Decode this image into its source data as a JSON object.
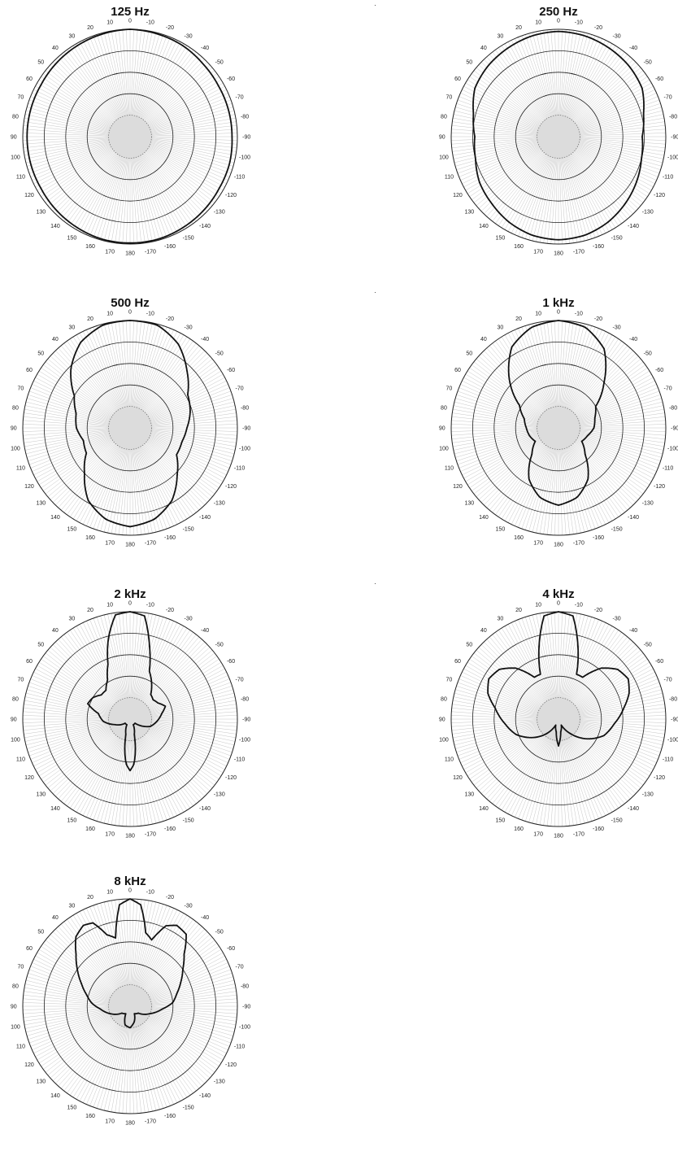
{
  "chart_data": [
    {
      "type": "polar",
      "title": "125 Hz",
      "angle_unit": "degrees",
      "rlim": [
        0,
        1
      ],
      "r_rings": [
        0.2,
        0.4,
        0.6,
        0.8,
        1.0
      ],
      "angle_labels": [
        "0",
        "10",
        "20",
        "30",
        "40",
        "50",
        "60",
        "70",
        "80",
        "90",
        "100",
        "110",
        "120",
        "130",
        "140",
        "150",
        "160",
        "170",
        "180",
        "-170",
        "-160",
        "-150",
        "-140",
        "-130",
        "-120",
        "-110",
        "-100",
        "-90",
        "-80",
        "-70",
        "-60",
        "-50",
        "-40",
        "-30",
        "-20",
        "-10"
      ],
      "angles": [
        0,
        15,
        30,
        45,
        60,
        75,
        90,
        105,
        120,
        135,
        150,
        165,
        180,
        -165,
        -150,
        -135,
        -120,
        -105,
        -90,
        -75,
        -60,
        -45,
        -30,
        -15
      ],
      "r": [
        1.0,
        0.99,
        0.98,
        0.97,
        0.96,
        0.96,
        0.96,
        0.96,
        0.96,
        0.97,
        0.98,
        0.99,
        0.99,
        0.99,
        0.98,
        0.97,
        0.96,
        0.96,
        0.95,
        0.95,
        0.95,
        0.96,
        0.98,
        0.99
      ]
    },
    {
      "type": "polar",
      "title": "250 Hz",
      "angle_unit": "degrees",
      "rlim": [
        0,
        1
      ],
      "r_rings": [
        0.2,
        0.4,
        0.6,
        0.8,
        1.0
      ],
      "angle_labels": [
        "0",
        "10",
        "20",
        "30",
        "40",
        "50",
        "60",
        "70",
        "80",
        "90",
        "100",
        "110",
        "120",
        "130",
        "140",
        "150",
        "160",
        "170",
        "180",
        "-170",
        "-160",
        "-150",
        "-140",
        "-130",
        "-120",
        "-110",
        "-100",
        "-90",
        "-80",
        "-70",
        "-60",
        "-50",
        "-40",
        "-30",
        "-20",
        "-10"
      ],
      "angles": [
        0,
        15,
        30,
        45,
        60,
        75,
        90,
        105,
        120,
        135,
        150,
        165,
        180,
        -165,
        -150,
        -135,
        -120,
        -105,
        -90,
        -75,
        -60,
        -45,
        -30,
        -15
      ],
      "r": [
        0.98,
        0.97,
        0.95,
        0.93,
        0.9,
        0.82,
        0.78,
        0.8,
        0.85,
        0.88,
        0.92,
        0.95,
        0.96,
        0.95,
        0.92,
        0.88,
        0.84,
        0.8,
        0.78,
        0.82,
        0.9,
        0.93,
        0.95,
        0.97
      ]
    },
    {
      "type": "polar",
      "title": "500 Hz",
      "angle_unit": "degrees",
      "rlim": [
        0,
        1
      ],
      "r_rings": [
        0.2,
        0.4,
        0.6,
        0.8,
        1.0
      ],
      "angle_labels": [
        "0",
        "10",
        "20",
        "30",
        "40",
        "50",
        "60",
        "70",
        "80",
        "90",
        "100",
        "110",
        "120",
        "130",
        "140",
        "150",
        "160",
        "170",
        "180",
        "-170",
        "-160",
        "-150",
        "-140",
        "-130",
        "-120",
        "-110",
        "-100",
        "-90",
        "-80",
        "-70",
        "-60",
        "-50",
        "-40",
        "-30",
        "-20",
        "-10"
      ],
      "angles": [
        0,
        15,
        30,
        45,
        60,
        75,
        90,
        105,
        120,
        135,
        150,
        165,
        180,
        -165,
        -150,
        -135,
        -120,
        -105,
        -90,
        -75,
        -60,
        -45,
        -30,
        -15
      ],
      "r": [
        1.0,
        0.99,
        0.92,
        0.78,
        0.6,
        0.52,
        0.5,
        0.45,
        0.47,
        0.6,
        0.78,
        0.88,
        0.92,
        0.88,
        0.78,
        0.62,
        0.5,
        0.5,
        0.53,
        0.58,
        0.62,
        0.75,
        0.9,
        0.99
      ]
    },
    {
      "type": "polar",
      "title": "1 kHz",
      "angle_unit": "degrees",
      "rlim": [
        0,
        1
      ],
      "r_rings": [
        0.2,
        0.4,
        0.6,
        0.8,
        1.0
      ],
      "angle_labels": [
        "0",
        "10",
        "20",
        "30",
        "40",
        "50",
        "60",
        "70",
        "80",
        "90",
        "100",
        "110",
        "120",
        "130",
        "140",
        "150",
        "160",
        "170",
        "180",
        "-170",
        "-160",
        "-150",
        "-140",
        "-130",
        "-120",
        "-110",
        "-100",
        "-90",
        "-80",
        "-70",
        "-60",
        "-50",
        "-40",
        "-30",
        "-20",
        "-10"
      ],
      "angles": [
        0,
        15,
        30,
        45,
        60,
        75,
        90,
        105,
        120,
        135,
        150,
        165,
        180,
        -165,
        -150,
        -135,
        -120,
        -105,
        -90,
        -75,
        -60,
        -45,
        -30,
        -15
      ],
      "r": [
        1.0,
        0.97,
        0.87,
        0.65,
        0.42,
        0.33,
        0.3,
        0.28,
        0.25,
        0.35,
        0.55,
        0.67,
        0.72,
        0.67,
        0.55,
        0.35,
        0.25,
        0.28,
        0.33,
        0.35,
        0.4,
        0.6,
        0.85,
        0.97
      ]
    },
    {
      "type": "polar",
      "title": "2 kHz",
      "angle_unit": "degrees",
      "rlim": [
        0,
        1
      ],
      "r_rings": [
        0.2,
        0.4,
        0.6,
        0.8,
        1.0
      ],
      "angle_labels": [
        "0",
        "10",
        "20",
        "30",
        "40",
        "50",
        "60",
        "70",
        "80",
        "90",
        "100",
        "110",
        "120",
        "130",
        "140",
        "150",
        "160",
        "170",
        "180",
        "-170",
        "-160",
        "-150",
        "-140",
        "-130",
        "-120",
        "-110",
        "-100",
        "-90",
        "-80",
        "-70",
        "-60",
        "-50",
        "-40",
        "-30",
        "-20",
        "-10"
      ],
      "angles": [
        0,
        8,
        15,
        22,
        30,
        40,
        50,
        60,
        70,
        80,
        95,
        110,
        130,
        150,
        165,
        175,
        180,
        -175,
        -165,
        -150,
        -130,
        -110,
        -95,
        -80,
        -70,
        -60,
        -50,
        -40,
        -30,
        -22,
        -15,
        -8
      ],
      "r": [
        1.0,
        0.98,
        0.78,
        0.55,
        0.42,
        0.35,
        0.35,
        0.4,
        0.42,
        0.3,
        0.25,
        0.15,
        0.06,
        0.06,
        0.15,
        0.42,
        0.48,
        0.42,
        0.15,
        0.06,
        0.06,
        0.2,
        0.25,
        0.3,
        0.35,
        0.3,
        0.28,
        0.3,
        0.4,
        0.48,
        0.7,
        0.97
      ]
    },
    {
      "type": "polar",
      "title": "4 kHz",
      "angle_unit": "degrees",
      "rlim": [
        0,
        1
      ],
      "r_rings": [
        0.2,
        0.4,
        0.6,
        0.8,
        1.0
      ],
      "angle_labels": [
        "0",
        "10",
        "20",
        "30",
        "40",
        "50",
        "60",
        "70",
        "80",
        "90",
        "100",
        "110",
        "120",
        "130",
        "140",
        "150",
        "160",
        "170",
        "180",
        "-170",
        "-160",
        "-150",
        "-140",
        "-130",
        "-120",
        "-110",
        "-100",
        "-90",
        "-80",
        "-70",
        "-60",
        "-50",
        "-40",
        "-30",
        "-20",
        "-10"
      ],
      "angles": [
        0,
        8,
        15,
        22,
        30,
        40,
        50,
        60,
        70,
        80,
        95,
        110,
        125,
        140,
        155,
        170,
        180,
        -170,
        -155,
        -140,
        -125,
        -110,
        -95,
        -80,
        -70,
        -60,
        -50,
        -40,
        -30,
        -22,
        -15,
        -8
      ],
      "r": [
        1.0,
        0.97,
        0.7,
        0.45,
        0.45,
        0.62,
        0.72,
        0.75,
        0.7,
        0.6,
        0.5,
        0.42,
        0.3,
        0.18,
        0.06,
        0.12,
        0.25,
        0.12,
        0.06,
        0.18,
        0.32,
        0.45,
        0.52,
        0.62,
        0.7,
        0.75,
        0.72,
        0.62,
        0.45,
        0.45,
        0.7,
        0.97
      ]
    },
    {
      "type": "polar",
      "title": "8 kHz",
      "angle_unit": "degrees",
      "rlim": [
        0,
        1
      ],
      "r_rings": [
        0.2,
        0.4,
        0.6,
        0.8,
        1.0
      ],
      "angle_labels": [
        "0",
        "10",
        "20",
        "30",
        "40",
        "50",
        "60",
        "70",
        "80",
        "90",
        "100",
        "110",
        "120",
        "130",
        "140",
        "150",
        "160",
        "170",
        "180",
        "-170",
        "-160",
        "-150",
        "-140",
        "-130",
        "-120",
        "-110",
        "-100",
        "-90",
        "-80",
        "-70",
        "-60",
        "-50",
        "-40",
        "-30",
        "-20",
        "-10"
      ],
      "angles": [
        0,
        6,
        12,
        18,
        24,
        30,
        38,
        46,
        55,
        65,
        75,
        85,
        95,
        110,
        130,
        150,
        165,
        180,
        -165,
        -150,
        -130,
        -110,
        -95,
        -85,
        -75,
        -65,
        -55,
        -46,
        -38,
        -30,
        -24,
        -18,
        -12,
        -6
      ],
      "r": [
        1.0,
        0.95,
        0.65,
        0.7,
        0.85,
        0.87,
        0.82,
        0.7,
        0.6,
        0.5,
        0.42,
        0.36,
        0.28,
        0.2,
        0.1,
        0.08,
        0.18,
        0.2,
        0.15,
        0.08,
        0.1,
        0.2,
        0.3,
        0.4,
        0.45,
        0.52,
        0.6,
        0.7,
        0.85,
        0.87,
        0.82,
        0.65,
        0.7,
        0.95
      ]
    }
  ]
}
